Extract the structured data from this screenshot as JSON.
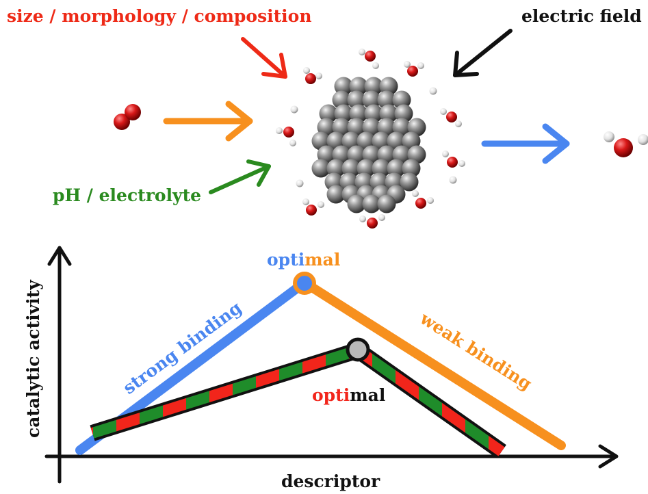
{
  "labels": {
    "size": "size / morphology / composition",
    "field": "electric field",
    "ph": "pH / electrolyte",
    "strong": "strong binding",
    "weak": "weak binding",
    "optimal_top": {
      "a": "opti",
      "b": "mal"
    },
    "optimal_bottom": {
      "a": "opti",
      "b": "mal"
    },
    "xaxis": "descriptor",
    "yaxis": "catalytic activity"
  },
  "colors": {
    "red": "#ee2a17",
    "black": "#111111",
    "orange": "#f7901e",
    "green": "#2a8a1f",
    "blue": "#4a86f0",
    "dash_green": "#1f8c2a",
    "dash_red": "#f2251b",
    "node_fill": "#b9b9b9",
    "oxygen": "#d31515",
    "hydrogen": "#e6e6e6",
    "cluster": "#8c8c8c"
  },
  "icons": [
    "oxygen-molecule-icon",
    "water-molecule-icon",
    "nanoparticle-icon",
    "proton-icon"
  ]
}
